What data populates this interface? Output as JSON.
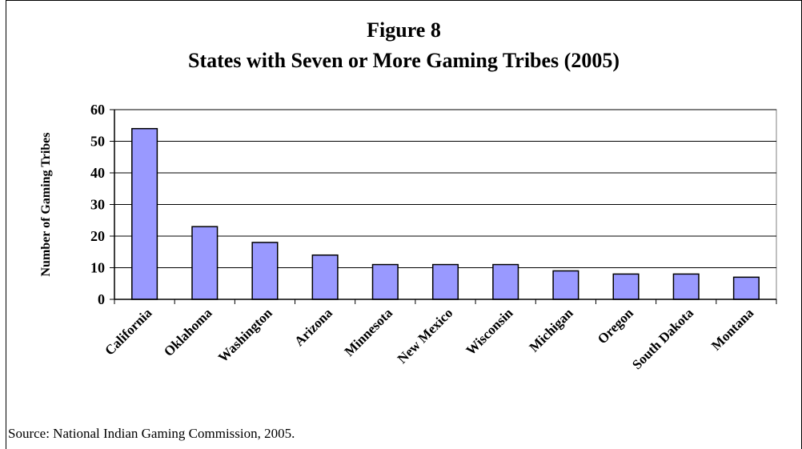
{
  "title_line1": "Figure 8",
  "title_line2": "States with Seven or More Gaming Tribes (2005)",
  "source": "Source:  National Indian Gaming Commission, 2005.",
  "colors": {
    "bar_fill": "#9999ff",
    "bar_stroke": "#000000",
    "grid": "#000000"
  },
  "chart_data": {
    "type": "bar",
    "title": "States with Seven or More Gaming Tribes (2005)",
    "xlabel": "",
    "ylabel": "Number of Gaming Tribes",
    "ylim": [
      0,
      60
    ],
    "yticks": [
      0,
      10,
      20,
      30,
      40,
      50,
      60
    ],
    "grid": true,
    "legend": "none",
    "categories": [
      "California",
      "Oklahoma",
      "Washington",
      "Arizona",
      "Minnesota",
      "New Mexico",
      "Wisconsin",
      "Michigan",
      "Oregon",
      "South Dakota",
      "Montana"
    ],
    "values": [
      54,
      23,
      18,
      14,
      11,
      11,
      11,
      9,
      8,
      8,
      7
    ]
  }
}
